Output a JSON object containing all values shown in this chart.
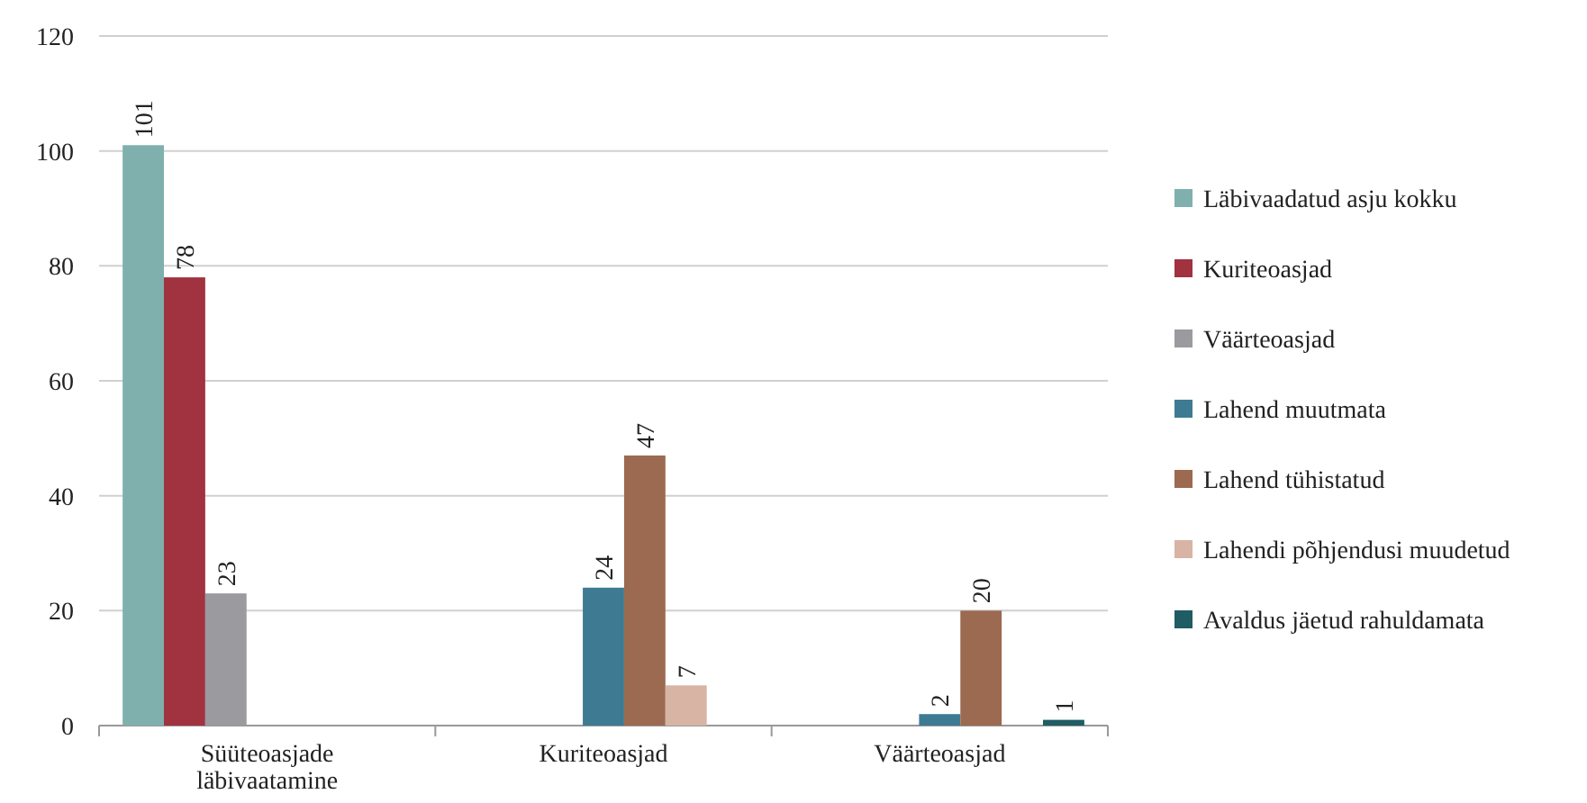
{
  "chart_data": {
    "type": "bar",
    "categories": [
      "Süüteoasjade läbivaatamine",
      "Kuriteoasjad",
      "Väärteoasjad"
    ],
    "series": [
      {
        "name": "Läbivaadatud asju kokku",
        "color": "#7fb0ae",
        "values": [
          101,
          null,
          null
        ]
      },
      {
        "name": "Kuriteoasjad",
        "color": "#a1323f",
        "values": [
          78,
          null,
          null
        ]
      },
      {
        "name": "Väärteoasjad",
        "color": "#9a9a9f",
        "values": [
          23,
          null,
          null
        ]
      },
      {
        "name": "Lahend muutmata",
        "color": "#3e7b93",
        "values": [
          null,
          24,
          2
        ]
      },
      {
        "name": "Lahend tühistatud",
        "color": "#9b6a50",
        "values": [
          null,
          47,
          20
        ]
      },
      {
        "name": "Lahendi põhjendusi muudetud",
        "color": "#d8b4a4",
        "values": [
          null,
          7,
          null
        ]
      },
      {
        "name": "Avaldus jäetud rahuldamata",
        "color": "#1f5c63",
        "values": [
          null,
          null,
          1
        ]
      }
    ],
    "ylim": [
      0,
      120
    ],
    "yticks": [
      0,
      20,
      40,
      60,
      80,
      100,
      120
    ],
    "grid": "y",
    "legend": "right",
    "data_labels": true
  }
}
